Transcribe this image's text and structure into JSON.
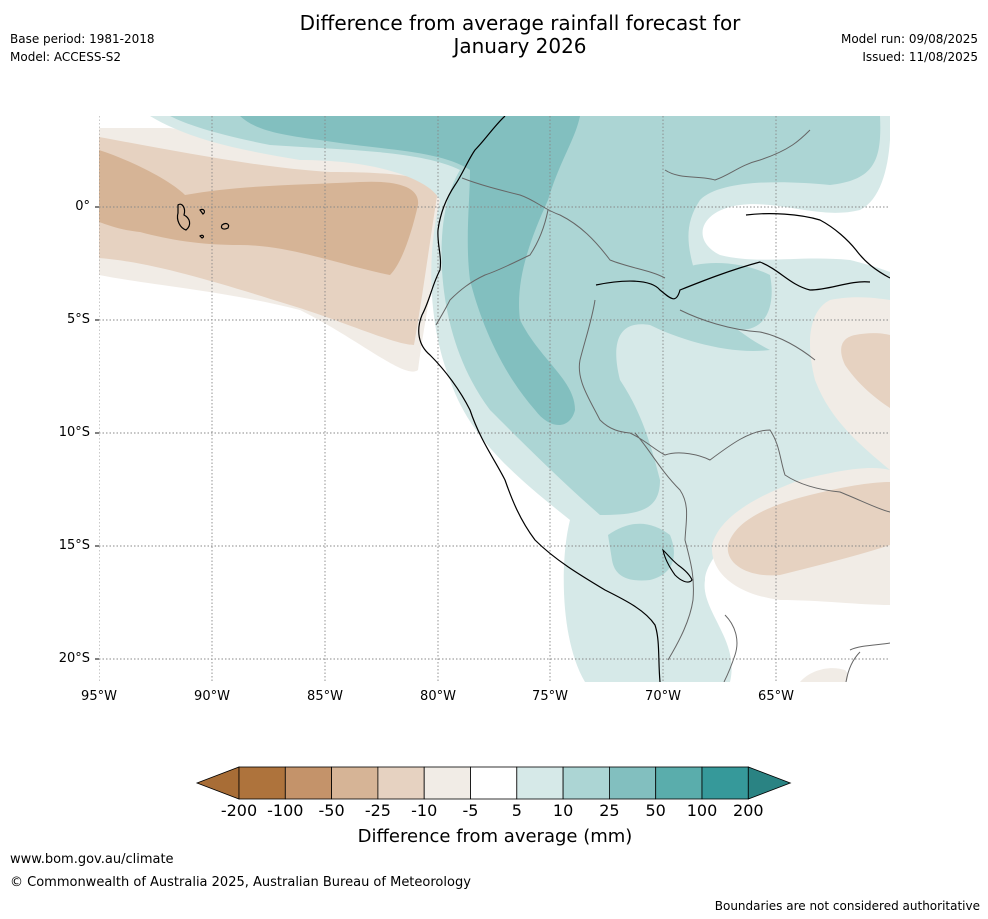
{
  "title_line1": "Difference from average rainfall forecast for",
  "title_line2": "January 2026",
  "meta_left": {
    "base_period": "Base period: 1981-2018",
    "model": "Model: ACCESS-S2"
  },
  "meta_right": {
    "model_run": "Model run: 09/08/2025",
    "issued": "Issued: 11/08/2025"
  },
  "map": {
    "lat_labels": [
      "0°",
      "5°S",
      "10°S",
      "15°S",
      "20°S"
    ],
    "lon_labels": [
      "95°W",
      "90°W",
      "85°W",
      "80°W",
      "75°W",
      "70°W",
      "65°W"
    ]
  },
  "legend": {
    "title": "Difference from average (mm)",
    "ticks": [
      "-200",
      "-100",
      "-50",
      "-25",
      "-10",
      "-5",
      "5",
      "10",
      "25",
      "50",
      "100",
      "200"
    ],
    "colors": [
      "#a86d36",
      "#ae733c",
      "#c4936a",
      "#d6b496",
      "#e6d2c1",
      "#f1ece6",
      "#ffffff",
      "#d6e9e8",
      "#acd5d4",
      "#82bfbf",
      "#5aadac",
      "#36999a",
      "#2a8383"
    ]
  },
  "footer": {
    "url": "www.bom.gov.au/climate",
    "copyright": "© Commonwealth of Australia 2025, Australian Bureau of Meteorology",
    "disclaimer": "Boundaries are not considered authoritative"
  }
}
